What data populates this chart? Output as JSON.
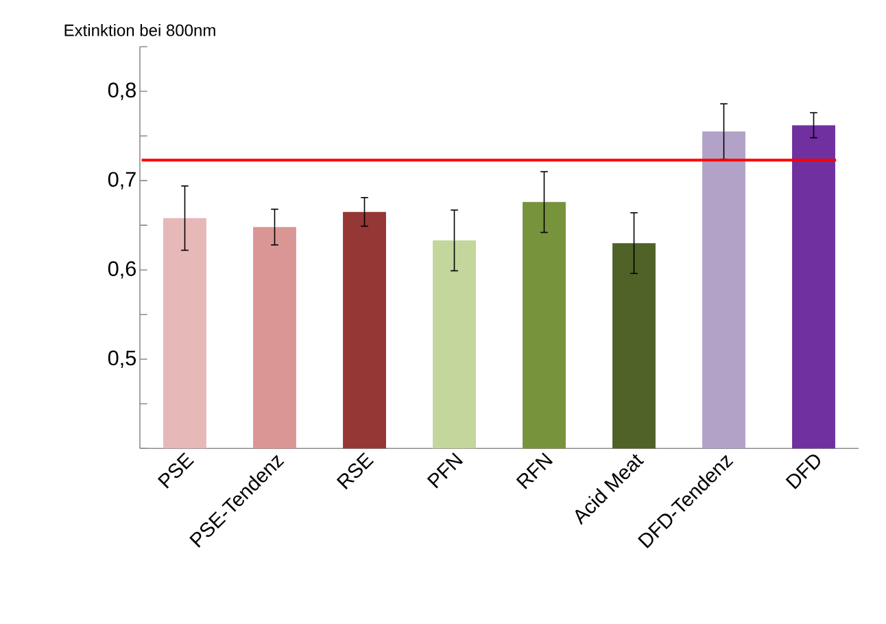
{
  "chart_data": {
    "type": "bar",
    "ylabel": "Extinktion bei 800nm",
    "categories": [
      "PSE",
      "PSE-Tendenz",
      "RSE",
      "PFN",
      "RFN",
      "Acid Meat",
      "DFD-Tendenz",
      "DFD"
    ],
    "values": [
      0.658,
      0.648,
      0.665,
      0.633,
      0.676,
      0.63,
      0.755,
      0.762
    ],
    "errors": [
      0.036,
      0.02,
      0.016,
      0.034,
      0.034,
      0.034,
      0.031,
      0.014
    ],
    "colors": [
      "#e6b8b7",
      "#da9694",
      "#953735",
      "#c3d69b",
      "#77933c",
      "#4f6228",
      "#b3a2c7",
      "#7030a0"
    ],
    "ylim": [
      0.4,
      0.85
    ],
    "yticks": [
      {
        "value": 0.4,
        "label": null
      },
      {
        "value": 0.45,
        "label": null
      },
      {
        "value": 0.5,
        "label": "0,5"
      },
      {
        "value": 0.55,
        "label": null
      },
      {
        "value": 0.6,
        "label": "0,6"
      },
      {
        "value": 0.65,
        "label": null
      },
      {
        "value": 0.7,
        "label": "0,7"
      },
      {
        "value": 0.75,
        "label": null
      },
      {
        "value": 0.8,
        "label": "0,8"
      },
      {
        "value": 0.85,
        "label": null
      }
    ],
    "ref_lines": [
      {
        "axis": "y",
        "value": 0.723,
        "color": "#ff0000"
      }
    ]
  }
}
